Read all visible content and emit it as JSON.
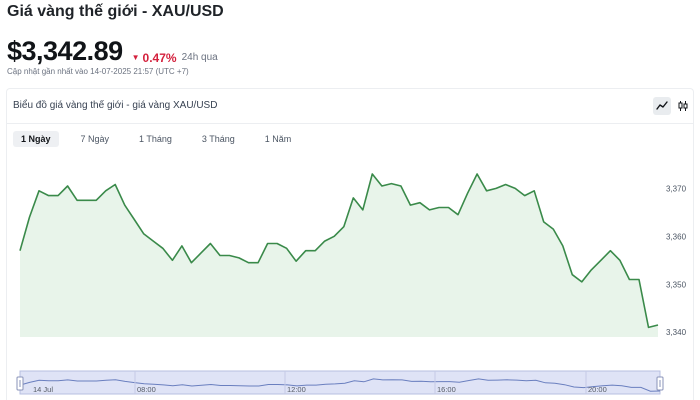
{
  "header": {
    "title": "Giá vàng thế giới - XAU/USD",
    "price": "$3,342.89",
    "change": "0.47%",
    "change_period": "24h qua",
    "updated": "Cập nhật gần nhất vào 14-07-2025 21:57 (UTC +7)"
  },
  "panel": {
    "title": "Biểu đồ giá vàng thế giới - giá vàng XAU/USD",
    "chart_type_buttons": [
      "line-chart-icon",
      "candlestick-icon"
    ]
  },
  "tabs": [
    {
      "label": "1 Ngày",
      "active": true
    },
    {
      "label": "7 Ngày",
      "active": false
    },
    {
      "label": "1 Tháng",
      "active": false
    },
    {
      "label": "3 Tháng",
      "active": false
    },
    {
      "label": "1 Năm",
      "active": false
    }
  ],
  "colors": {
    "line": "#3a8a4a",
    "fill": "#e8f4ea",
    "negative": "#d4213d",
    "navigator_fill": "#dfe3f6",
    "navigator_line": "#6a7fbf"
  },
  "chart_data": {
    "type": "area",
    "ylim": [
      3339,
      3378
    ],
    "yticks": [
      3340,
      3350,
      3360,
      3370
    ],
    "ytick_labels": [
      "3,340",
      "3,350",
      "3,360",
      "3,370"
    ],
    "values": [
      3357,
      3364,
      3369.5,
      3368.5,
      3368.5,
      3370.5,
      3367.5,
      3367.5,
      3367.5,
      3369.5,
      3370.8,
      3366.5,
      3363.5,
      3360.5,
      3359,
      3357.5,
      3355,
      3358,
      3354.5,
      3356.5,
      3358.5,
      3356,
      3356,
      3355.5,
      3354.5,
      3354.5,
      3358.5,
      3358.5,
      3357.5,
      3354.8,
      3357,
      3357,
      3359,
      3360,
      3362,
      3368,
      3365.5,
      3373,
      3370.5,
      3371,
      3370.5,
      3366.5,
      3367,
      3365.5,
      3366,
      3366,
      3364.5,
      3369,
      3373,
      3369.5,
      3370,
      3370.8,
      3370,
      3368.5,
      3369.5,
      3363,
      3361.5,
      3358,
      3352,
      3350.5,
      3353,
      3355,
      3357,
      3355,
      3351,
      3351,
      3341,
      3341.5
    ],
    "navigator_labels": [
      "14 Jul",
      "08:00",
      "12:00",
      "16:00",
      "20:00"
    ]
  }
}
